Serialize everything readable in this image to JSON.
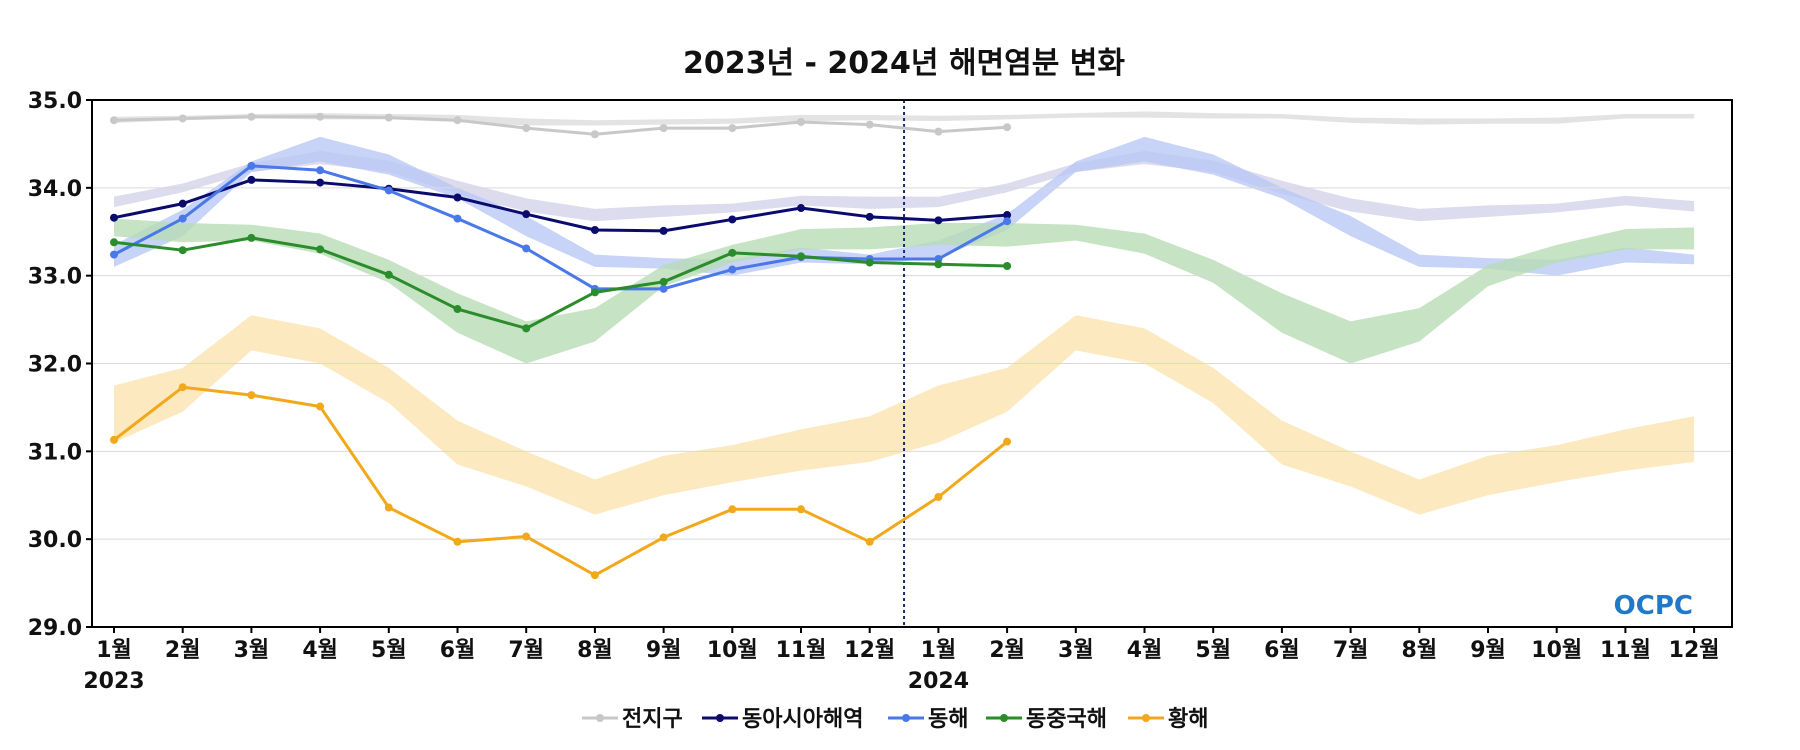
{
  "chart_data": {
    "type": "line",
    "title": "2023년 - 2024년 해면염분 변화",
    "ylim": [
      29.0,
      35.0
    ],
    "yticks": [
      "35.0",
      "34.0",
      "33.0",
      "32.0",
      "31.0",
      "30.0",
      "29.0"
    ],
    "x_month_labels": [
      "1월",
      "2월",
      "3월",
      "4월",
      "5월",
      "6월",
      "7월",
      "8월",
      "9월",
      "10월",
      "11월",
      "12월",
      "1월",
      "2월",
      "3월",
      "4월",
      "5월",
      "6월",
      "7월",
      "8월",
      "9월",
      "10월",
      "11월",
      "12월"
    ],
    "x_year_labels": [
      {
        "label": "2023",
        "index": 0
      },
      {
        "label": "2024",
        "index": 12
      }
    ],
    "divider_after_index": 11.5,
    "grid": "horizontal",
    "legend_position": "bottom-center",
    "watermark": "OCPC",
    "series": [
      {
        "name": "전지구",
        "color": "#c8c8c8",
        "band_color": "#dcdcdc",
        "values": [
          34.77,
          34.79,
          34.81,
          34.81,
          34.8,
          34.77,
          34.68,
          34.61,
          34.68,
          34.68,
          34.75,
          34.72,
          34.64,
          34.69
        ],
        "band_upper": [
          34.81,
          34.82,
          34.84,
          34.85,
          34.84,
          34.83,
          34.79,
          34.77,
          34.78,
          34.79,
          34.83,
          34.83,
          34.82,
          34.83,
          34.85,
          34.87,
          34.85,
          34.84,
          34.8,
          34.79,
          34.79,
          34.8,
          34.84,
          34.84
        ],
        "band_lower": [
          34.74,
          34.77,
          34.79,
          34.78,
          34.78,
          34.75,
          34.71,
          34.71,
          34.72,
          34.73,
          34.76,
          34.77,
          34.76,
          34.78,
          34.8,
          34.8,
          34.79,
          34.79,
          34.74,
          34.72,
          34.73,
          34.73,
          34.79,
          34.79
        ]
      },
      {
        "name": "동아시아해역",
        "color": "#0b0b6e",
        "band_color": "#d5d2ea",
        "values": [
          33.66,
          33.82,
          34.09,
          34.06,
          33.99,
          33.89,
          33.7,
          33.52,
          33.51,
          33.64,
          33.77,
          33.67,
          33.63,
          33.69
        ],
        "band_upper": [
          33.9,
          34.05,
          34.28,
          34.42,
          34.31,
          34.08,
          33.88,
          33.76,
          33.8,
          33.82,
          33.91,
          33.9,
          33.9,
          34.05,
          34.28,
          34.42,
          34.31,
          34.08,
          33.88,
          33.76,
          33.8,
          33.82,
          33.91,
          33.85
        ],
        "band_lower": [
          33.78,
          33.95,
          34.18,
          34.27,
          34.18,
          33.93,
          33.73,
          33.62,
          33.67,
          33.72,
          33.8,
          33.76,
          33.78,
          33.95,
          34.18,
          34.27,
          34.18,
          33.93,
          33.73,
          33.62,
          33.67,
          33.72,
          33.8,
          33.73
        ]
      },
      {
        "name": "동해",
        "color": "#4a78e8",
        "band_color": "#b9c8f5",
        "values": [
          33.24,
          33.65,
          34.25,
          34.2,
          33.97,
          33.65,
          33.31,
          32.85,
          32.85,
          33.07,
          33.21,
          33.19,
          33.19,
          33.62
        ],
        "band_upper": [
          33.35,
          33.75,
          34.3,
          34.58,
          34.38,
          34.0,
          33.68,
          33.24,
          33.2,
          33.18,
          33.32,
          33.24,
          33.4,
          33.7,
          34.3,
          34.58,
          34.38,
          34.0,
          33.68,
          33.24,
          33.2,
          33.18,
          33.32,
          33.24
        ],
        "band_lower": [
          33.1,
          33.45,
          34.18,
          34.3,
          34.15,
          33.88,
          33.45,
          33.1,
          33.08,
          33.0,
          33.15,
          33.13,
          33.2,
          33.52,
          34.18,
          34.3,
          34.15,
          33.88,
          33.45,
          33.1,
          33.08,
          33.0,
          33.15,
          33.13
        ]
      },
      {
        "name": "동중국해",
        "color": "#2a8c2a",
        "band_color": "#b8dcb5",
        "values": [
          33.38,
          33.29,
          33.43,
          33.3,
          33.01,
          32.62,
          32.4,
          32.81,
          32.93,
          33.26,
          33.22,
          33.15,
          33.13,
          33.11
        ],
        "band_upper": [
          33.65,
          33.6,
          33.58,
          33.48,
          33.18,
          32.8,
          32.48,
          32.63,
          33.12,
          33.35,
          33.53,
          33.55,
          33.6,
          33.6,
          33.58,
          33.48,
          33.18,
          32.8,
          32.48,
          32.63,
          33.12,
          33.35,
          33.53,
          33.55
        ],
        "band_lower": [
          33.45,
          33.38,
          33.4,
          33.25,
          32.92,
          32.35,
          32.0,
          32.25,
          32.88,
          33.15,
          33.3,
          33.3,
          33.35,
          33.33,
          33.4,
          33.25,
          32.92,
          32.35,
          32.0,
          32.25,
          32.88,
          33.15,
          33.3,
          33.3
        ]
      },
      {
        "name": "황해",
        "color": "#f2a81c",
        "band_color": "#fde3b0",
        "values": [
          31.13,
          31.73,
          31.64,
          31.51,
          30.36,
          29.97,
          30.03,
          29.59,
          30.02,
          30.34,
          30.34,
          29.97,
          30.48,
          31.11
        ],
        "band_upper": [
          31.75,
          31.95,
          32.55,
          32.4,
          31.95,
          31.35,
          31.0,
          30.68,
          30.95,
          31.07,
          31.25,
          31.4,
          31.75,
          31.95,
          32.55,
          32.4,
          31.95,
          31.35,
          31.0,
          30.68,
          30.95,
          31.07,
          31.25,
          31.4
        ],
        "band_lower": [
          31.1,
          31.45,
          32.15,
          32.0,
          31.55,
          30.85,
          30.6,
          30.28,
          30.5,
          30.65,
          30.78,
          30.88,
          31.1,
          31.45,
          32.15,
          32.0,
          31.55,
          30.85,
          30.6,
          30.28,
          30.5,
          30.65,
          30.78,
          30.88
        ]
      }
    ]
  }
}
